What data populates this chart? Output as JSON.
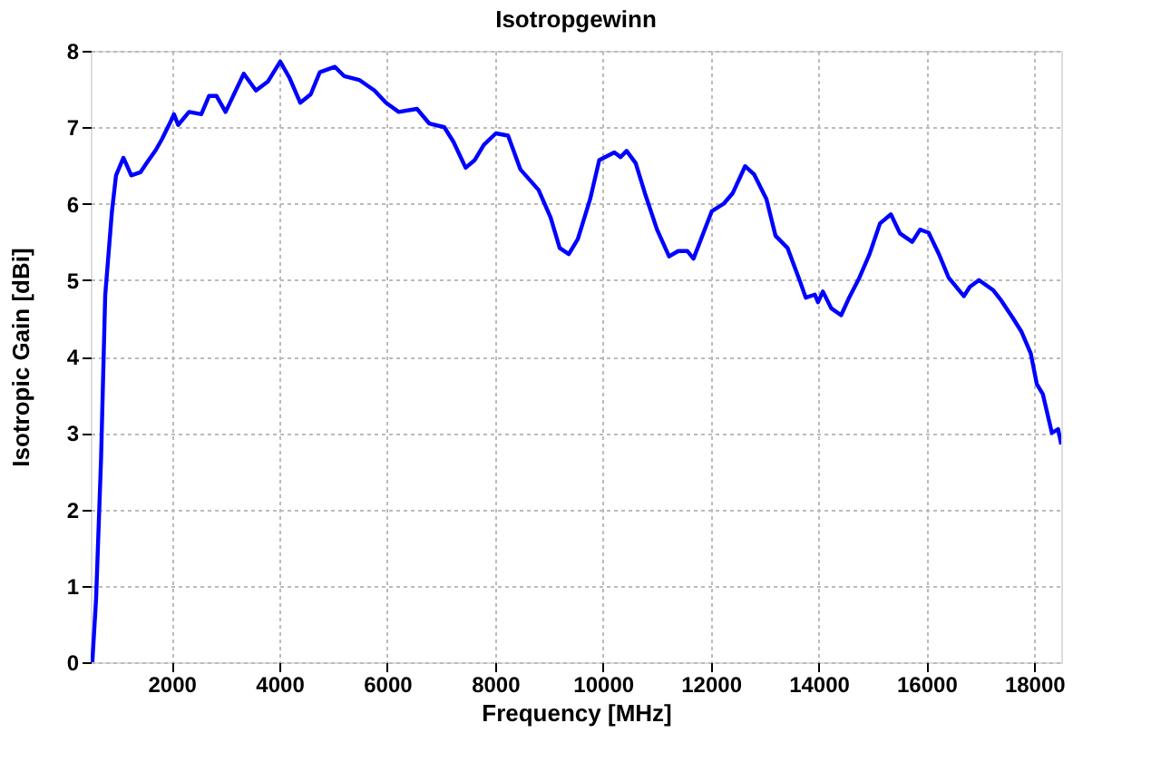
{
  "chart_data": {
    "type": "line",
    "title": "Isotropgewinn",
    "xlabel": "Frequency [MHz]",
    "ylabel": "Isotropic Gain [dBi]",
    "xlim": [
      500,
      18500
    ],
    "ylim": [
      0,
      8
    ],
    "xticks": [
      2000,
      4000,
      6000,
      8000,
      10000,
      12000,
      14000,
      16000,
      18000
    ],
    "yticks": [
      0,
      1,
      2,
      3,
      4,
      5,
      6,
      7,
      8
    ],
    "grid": true,
    "line_style": "solid",
    "marker": "none",
    "x": [
      530,
      600,
      692,
      769,
      894,
      970,
      1107,
      1253,
      1422,
      1537,
      1706,
      1818,
      1986,
      2044,
      2122,
      2324,
      2551,
      2696,
      2832,
      3001,
      3339,
      3565,
      3789,
      4015,
      4184,
      4387,
      4580,
      4749,
      5030,
      5199,
      5479,
      5763,
      5976,
      6213,
      6551,
      6777,
      7058,
      7227,
      7454,
      7623,
      7792,
      8015,
      8241,
      8468,
      8806,
      9029,
      9198,
      9367,
      9536,
      9763,
      9932,
      10212,
      10327,
      10439,
      10608,
      10777,
      11004,
      11227,
      11396,
      11565,
      11680,
      12018,
      12241,
      12410,
      12637,
      12806,
      13033,
      13201,
      13424,
      13651,
      13762,
      13931,
      13989,
      14080,
      14236,
      14418,
      14553,
      14756,
      14945,
      15138,
      15341,
      15510,
      15737,
      15882,
      16041,
      16244,
      16413,
      16693,
      16805,
      16974,
      17235,
      17370,
      17597,
      17766,
      17935,
      18047,
      18158,
      18327,
      18442,
      18500
    ],
    "series": [
      {
        "color": "#0000ff",
        "values": [
          0,
          0.83,
          2.66,
          4.8,
          5.9,
          6.37,
          6.6,
          6.37,
          6.41,
          6.53,
          6.7,
          6.84,
          7.08,
          7.17,
          7.03,
          7.2,
          7.17,
          7.41,
          7.41,
          7.2,
          7.7,
          7.48,
          7.6,
          7.86,
          7.65,
          7.32,
          7.43,
          7.72,
          7.79,
          7.67,
          7.62,
          7.48,
          7.32,
          7.2,
          7.24,
          7.05,
          7.0,
          6.81,
          6.47,
          6.57,
          6.77,
          6.92,
          6.89,
          6.45,
          6.18,
          5.82,
          5.42,
          5.34,
          5.54,
          6.06,
          6.57,
          6.67,
          6.61,
          6.69,
          6.53,
          6.14,
          5.66,
          5.31,
          5.38,
          5.38,
          5.28,
          5.9,
          6.0,
          6.14,
          6.49,
          6.38,
          6.06,
          5.58,
          5.42,
          4.99,
          4.77,
          4.81,
          4.71,
          4.85,
          4.63,
          4.54,
          4.75,
          5.03,
          5.34,
          5.74,
          5.86,
          5.61,
          5.5,
          5.66,
          5.62,
          5.32,
          5.03,
          4.79,
          4.91,
          5.0,
          4.87,
          4.75,
          4.51,
          4.32,
          4.04,
          3.64,
          3.51,
          3.0,
          3.05,
          2.85
        ]
      }
    ]
  }
}
